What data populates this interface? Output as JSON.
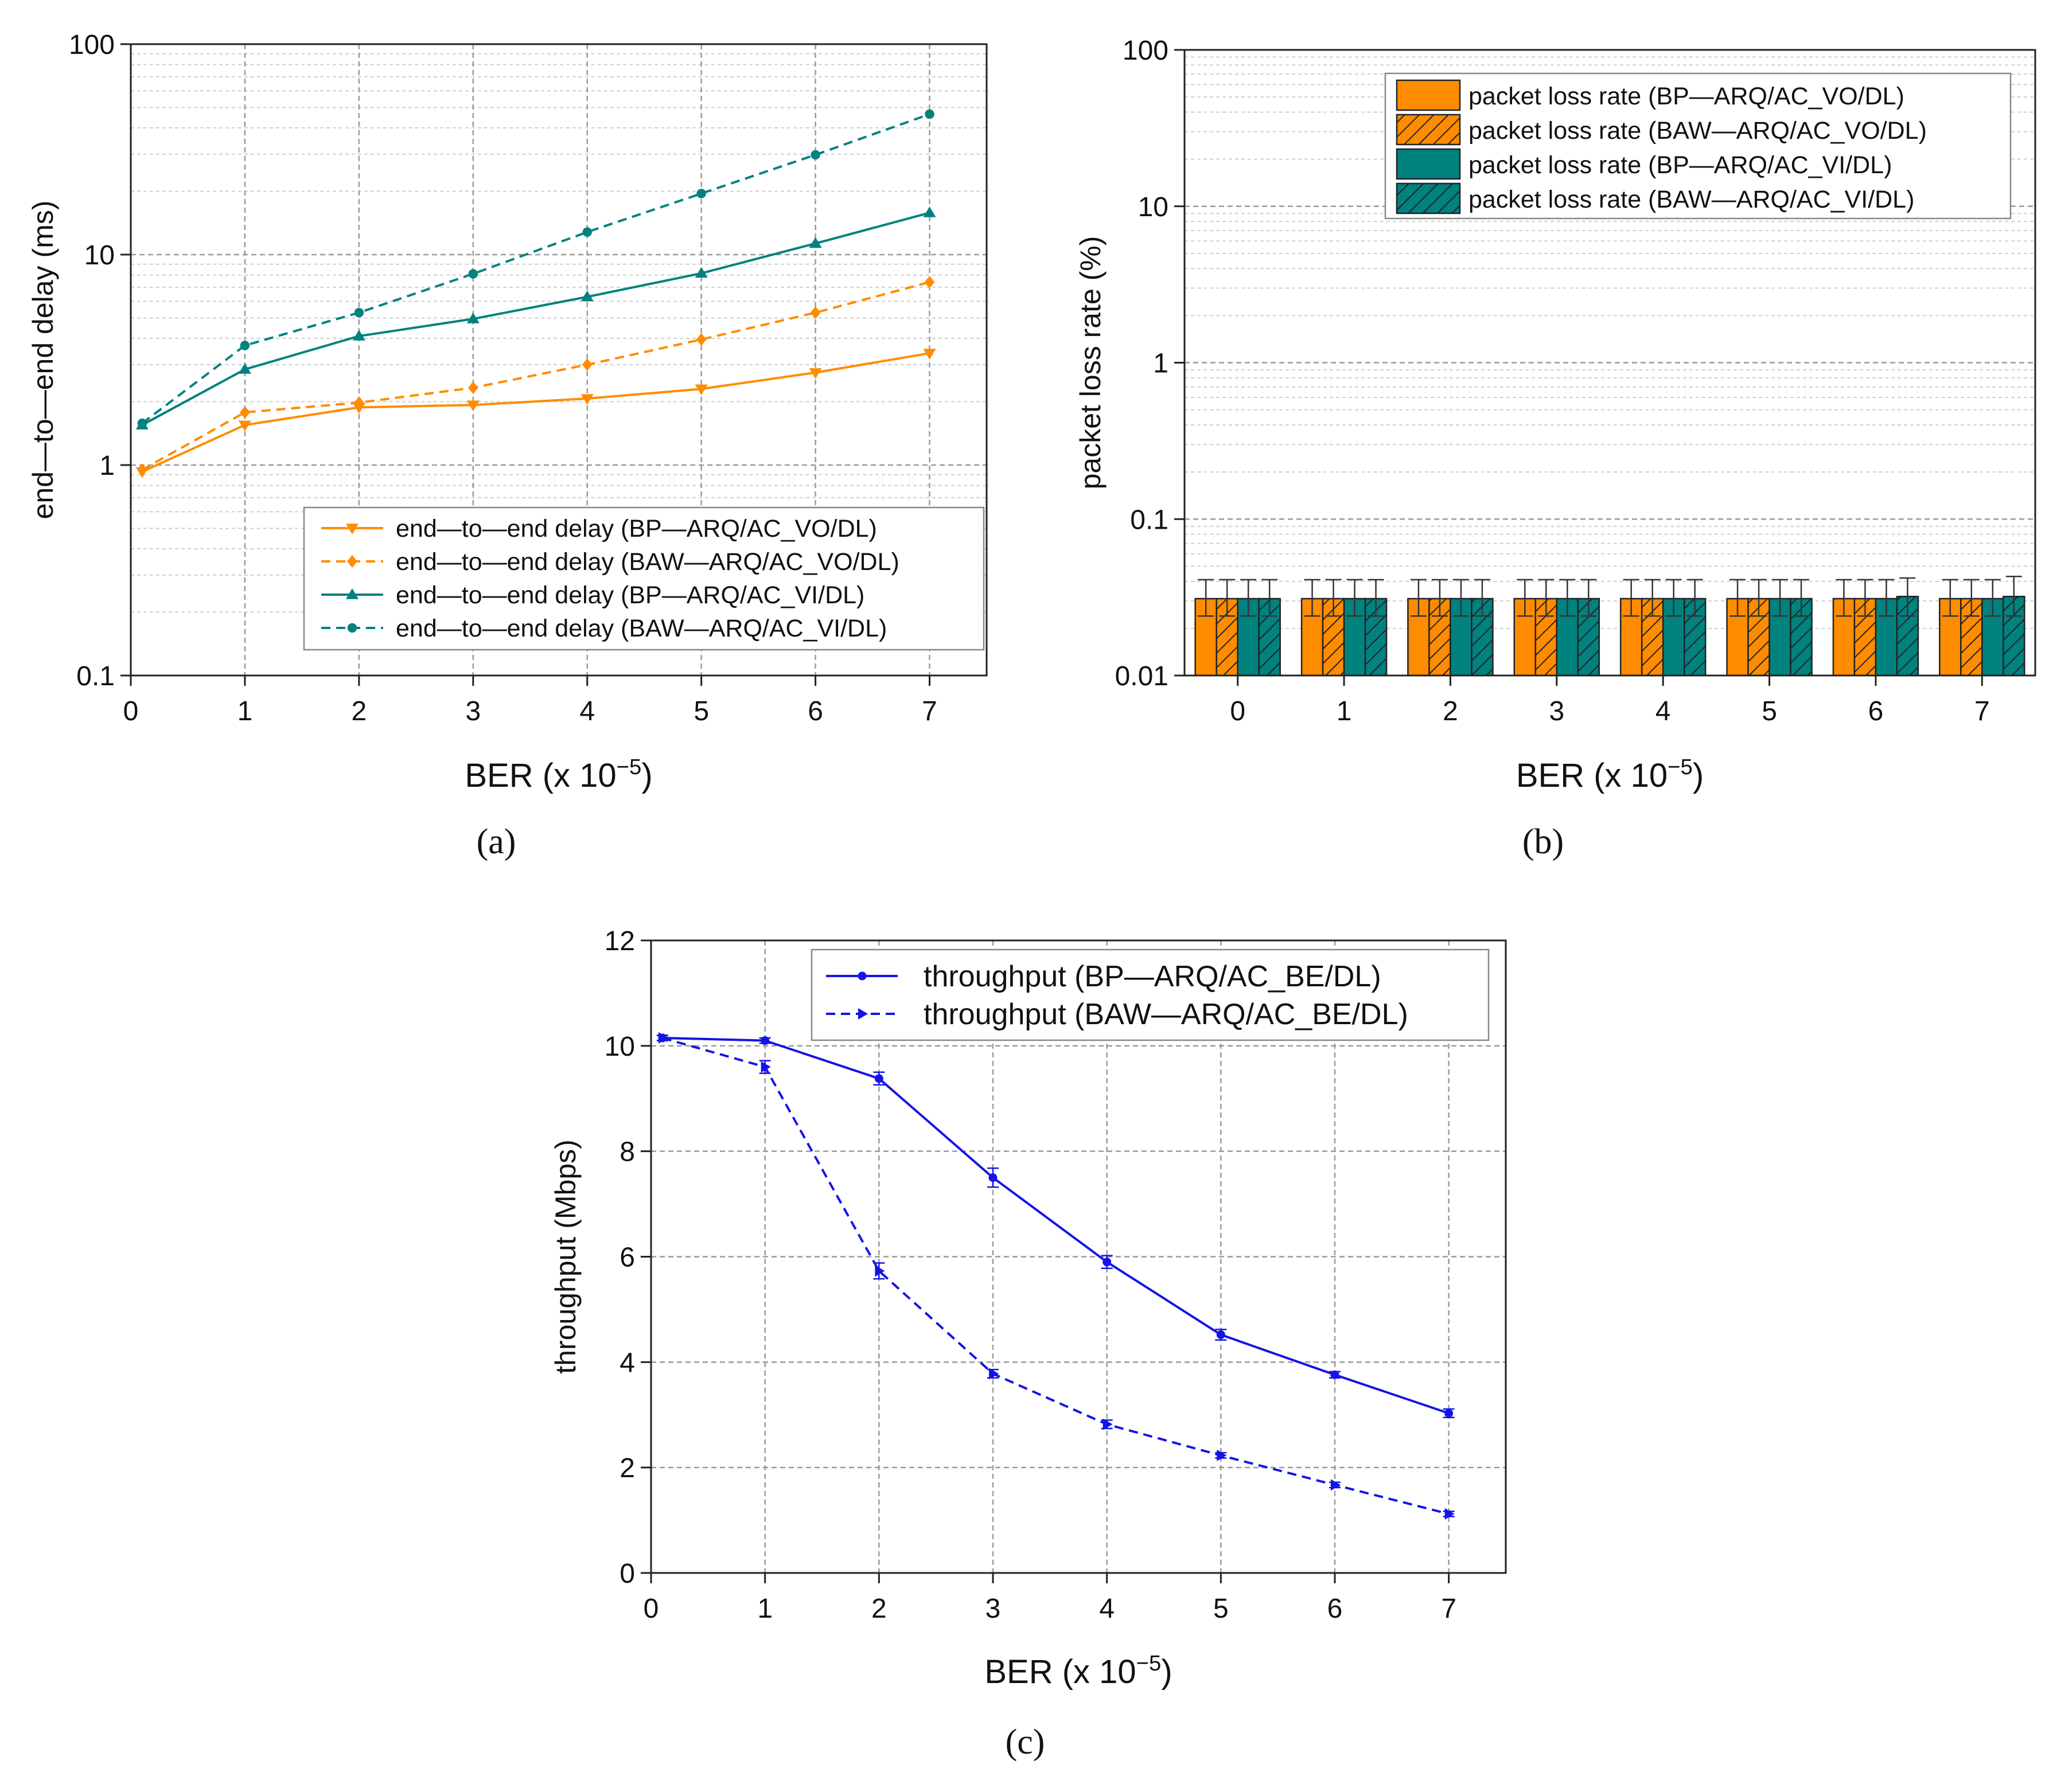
{
  "colors": {
    "orange": "#FF8C00",
    "teal": "#00827F",
    "blue": "#1414E6",
    "grid": "#9a9a9a",
    "axis": "#222222"
  },
  "chart_data": [
    {
      "panel": "a",
      "label": "(a)",
      "type": "line",
      "xlabel": "BER (x 10",
      "xlabel_sup": "−5",
      "xlabel_end": ")",
      "ylabel": "end—to—end delay (ms)",
      "xlim": [
        0,
        7.5
      ],
      "ylim": [
        0.1,
        100
      ],
      "yscale": "log",
      "grid": true,
      "legend_position": "bottom-right",
      "xticks": [
        "0",
        "1",
        "2",
        "3",
        "4",
        "5",
        "6",
        "7"
      ],
      "yticks": [
        "0.1",
        "1",
        "10",
        "100"
      ],
      "x": [
        0.1,
        1,
        2,
        3,
        4,
        5,
        6,
        7
      ],
      "series": [
        {
          "name": "end—to—end delay (BP—ARQ/AC_VO/DL)",
          "color": "orange",
          "dash": false,
          "marker": "triangle-down",
          "values": [
            0.93,
            1.55,
            1.88,
            1.93,
            2.07,
            2.3,
            2.75,
            3.4
          ]
        },
        {
          "name": "end—to—end delay (BAW—ARQ/AC_VO/DL)",
          "color": "orange",
          "dash": true,
          "marker": "diamond",
          "values": [
            0.95,
            1.78,
            1.98,
            2.33,
            3.0,
            3.95,
            5.3,
            7.4
          ]
        },
        {
          "name": "end—to—end delay (BP—ARQ/AC_VI/DL)",
          "color": "teal",
          "dash": false,
          "marker": "triangle-up",
          "values": [
            1.55,
            2.85,
            4.1,
            4.95,
            6.3,
            8.15,
            11.3,
            15.8
          ]
        },
        {
          "name": "end—to—end delay (BAW—ARQ/AC_VI/DL)",
          "color": "teal",
          "dash": true,
          "marker": "circle",
          "values": [
            1.58,
            3.7,
            5.3,
            8.1,
            12.8,
            19.5,
            29.8,
            46.5
          ]
        }
      ]
    },
    {
      "panel": "b",
      "label": "(b)",
      "type": "bar",
      "xlabel": "BER (x 10",
      "xlabel_sup": "−5",
      "xlabel_end": ")",
      "ylabel": "packet loss rate (%)",
      "ylim": [
        0.01,
        100
      ],
      "yscale": "log",
      "grid": true,
      "legend_position": "top-right",
      "categories": [
        "0",
        "1",
        "2",
        "3",
        "4",
        "5",
        "6",
        "7"
      ],
      "yticks": [
        "0.01",
        "0.1",
        "1",
        "10",
        "100"
      ],
      "series": [
        {
          "name": "packet loss rate (BP—ARQ/AC_VO/DL)",
          "color": "orange",
          "hatch": false,
          "values": [
            0.031,
            0.031,
            0.031,
            0.031,
            0.031,
            0.031,
            0.031,
            0.031
          ],
          "err_high": [
            0.041,
            0.041,
            0.041,
            0.041,
            0.041,
            0.041,
            0.041,
            0.041
          ],
          "err_low": [
            0.024,
            0.024,
            0.024,
            0.024,
            0.024,
            0.024,
            0.024,
            0.024
          ]
        },
        {
          "name": "packet loss rate (BAW—ARQ/AC_VO/DL)",
          "color": "orange",
          "hatch": true,
          "values": [
            0.031,
            0.031,
            0.031,
            0.031,
            0.031,
            0.031,
            0.031,
            0.031
          ],
          "err_high": [
            0.041,
            0.041,
            0.041,
            0.041,
            0.041,
            0.041,
            0.041,
            0.041
          ],
          "err_low": [
            0.024,
            0.024,
            0.024,
            0.024,
            0.024,
            0.024,
            0.024,
            0.024
          ]
        },
        {
          "name": "packet loss rate (BP—ARQ/AC_VI/DL)",
          "color": "teal",
          "hatch": false,
          "values": [
            0.031,
            0.031,
            0.031,
            0.031,
            0.031,
            0.031,
            0.031,
            0.031
          ],
          "err_high": [
            0.041,
            0.041,
            0.041,
            0.041,
            0.041,
            0.041,
            0.041,
            0.041
          ],
          "err_low": [
            0.024,
            0.024,
            0.024,
            0.024,
            0.024,
            0.024,
            0.024,
            0.024
          ]
        },
        {
          "name": "packet loss rate (BAW—ARQ/AC_VI/DL)",
          "color": "teal",
          "hatch": true,
          "values": [
            0.031,
            0.031,
            0.031,
            0.031,
            0.031,
            0.031,
            0.032,
            0.032
          ],
          "err_high": [
            0.041,
            0.041,
            0.041,
            0.041,
            0.041,
            0.041,
            0.042,
            0.043
          ],
          "err_low": [
            0.024,
            0.024,
            0.024,
            0.024,
            0.024,
            0.024,
            0.024,
            0.024
          ]
        }
      ]
    },
    {
      "panel": "c",
      "label": "(c)",
      "type": "line",
      "xlabel": "BER (x 10",
      "xlabel_sup": "−5",
      "xlabel_end": ")",
      "ylabel": "throughput (Mbps)",
      "xlim": [
        0,
        7.5
      ],
      "ylim": [
        0,
        12
      ],
      "yscale": "linear",
      "grid": true,
      "legend_position": "top-right",
      "xticks": [
        "0",
        "1",
        "2",
        "3",
        "4",
        "5",
        "6",
        "7"
      ],
      "yticks": [
        "0",
        "2",
        "4",
        "6",
        "8",
        "10",
        "12"
      ],
      "x": [
        0.1,
        1,
        2,
        3,
        4,
        5,
        6,
        7
      ],
      "series": [
        {
          "name": "throughput (BP—ARQ/AC_BE/DL)",
          "color": "blue",
          "dash": false,
          "marker": "circle",
          "values": [
            10.15,
            10.1,
            9.38,
            7.5,
            5.9,
            4.52,
            3.76,
            3.03
          ],
          "err": [
            0.05,
            0.05,
            0.12,
            0.18,
            0.12,
            0.1,
            0.06,
            0.08
          ]
        },
        {
          "name": "throughput (BAW—ARQ/AC_BE/DL)",
          "color": "blue",
          "dash": true,
          "marker": "triangle-right",
          "values": [
            10.15,
            9.6,
            5.73,
            3.78,
            2.82,
            2.23,
            1.67,
            1.12
          ],
          "err": [
            0.05,
            0.12,
            0.15,
            0.08,
            0.08,
            0.05,
            0.05,
            0.05
          ]
        }
      ]
    }
  ]
}
